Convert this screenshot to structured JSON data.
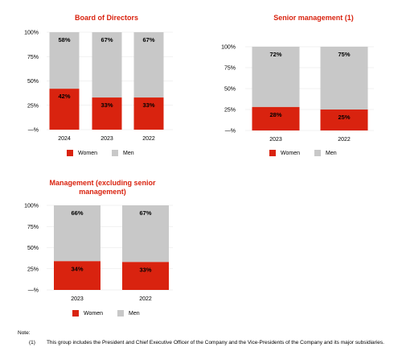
{
  "chart_data": [
    {
      "type": "bar",
      "stacked": true,
      "title": "Board of Directors",
      "categories": [
        "2024",
        "2023",
        "2022"
      ],
      "series": [
        {
          "name": "Women",
          "values": [
            42,
            33,
            33
          ],
          "labels": [
            "42%",
            "33%",
            "33%"
          ]
        },
        {
          "name": "Men",
          "values": [
            58,
            67,
            67
          ],
          "labels": [
            "58%",
            "67%",
            "67%"
          ]
        }
      ],
      "yticks": [
        "100%",
        "75%",
        "50%",
        "25%",
        "—%"
      ],
      "ylim": [
        0,
        100
      ]
    },
    {
      "type": "bar",
      "stacked": true,
      "title": "Senior management (1)",
      "categories": [
        "2023",
        "2022"
      ],
      "series": [
        {
          "name": "Women",
          "values": [
            28,
            25
          ],
          "labels": [
            "28%",
            "25%"
          ]
        },
        {
          "name": "Men",
          "values": [
            72,
            75
          ],
          "labels": [
            "72%",
            "75%"
          ]
        }
      ],
      "yticks": [
        "100%",
        "75%",
        "50%",
        "25%",
        "—%"
      ],
      "ylim": [
        0,
        100
      ]
    },
    {
      "type": "bar",
      "stacked": true,
      "title": "Management  (excluding senior management)",
      "categories": [
        "2023",
        "2022"
      ],
      "series": [
        {
          "name": "Women",
          "values": [
            34,
            33
          ],
          "labels": [
            "34%",
            "33%"
          ]
        },
        {
          "name": "Men",
          "values": [
            66,
            67
          ],
          "labels": [
            "66%",
            "67%"
          ]
        }
      ],
      "yticks": [
        "100%",
        "75%",
        "50%",
        "25%",
        "—%"
      ],
      "ylim": [
        0,
        100
      ]
    }
  ],
  "colors": {
    "women": "#d9230f",
    "men": "#c8c8c8",
    "title": "#d9230f",
    "grid": "#e6e6e6"
  },
  "legend": {
    "women": "Women",
    "men": "Men"
  },
  "note": {
    "label": "Note:",
    "marker": "(1)",
    "text": "This group includes the President and Chief Executive Officer of the Company and the Vice-Presidents of the Company and its major subsidiaries."
  }
}
